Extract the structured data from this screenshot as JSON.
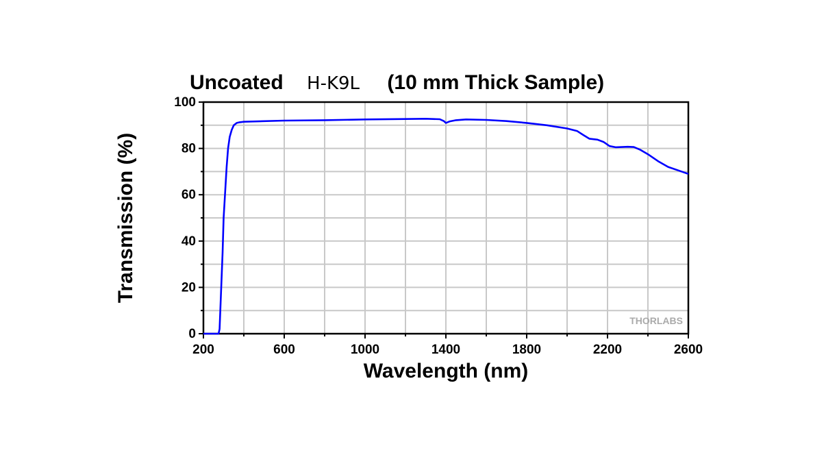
{
  "chart_data": {
    "type": "line",
    "title_parts": [
      "Uncoated",
      "H-K9L",
      "(10 mm Thick Sample)"
    ],
    "xlabel": "Wavelength (nm)",
    "ylabel": "Transmission (%)",
    "xlim": [
      200,
      2600
    ],
    "ylim": [
      0,
      100
    ],
    "xticks": [
      "200",
      "600",
      "1000",
      "1400",
      "1800",
      "2200",
      "2600"
    ],
    "yticks": [
      "0",
      "20",
      "40",
      "60",
      "80",
      "100"
    ],
    "grid": true,
    "watermark": "THORLABS",
    "series": [
      {
        "color": "#0000ff",
        "x": [
          200,
          275,
          280,
          288,
          295,
          300,
          308,
          315,
          322,
          330,
          340,
          350,
          365,
          380,
          400,
          600,
          800,
          1000,
          1200,
          1300,
          1370,
          1390,
          1400,
          1420,
          1450,
          1500,
          1600,
          1700,
          1800,
          1900,
          2000,
          2050,
          2080,
          2110,
          2150,
          2180,
          2210,
          2240,
          2300,
          2330,
          2360,
          2400,
          2450,
          2500,
          2550,
          2600
        ],
        "y": [
          0,
          0,
          2,
          20,
          35,
          50,
          62,
          72,
          80,
          85,
          88,
          90,
          91,
          91.3,
          91.5,
          92,
          92.2,
          92.5,
          92.7,
          92.8,
          92.6,
          91.8,
          91,
          91.7,
          92.2,
          92.5,
          92.3,
          91.8,
          91,
          90,
          88.6,
          87.5,
          85.8,
          84.2,
          83.8,
          82.8,
          81,
          80.5,
          80.7,
          80.6,
          79.5,
          77.5,
          74.5,
          72,
          70.5,
          69
        ]
      }
    ]
  }
}
